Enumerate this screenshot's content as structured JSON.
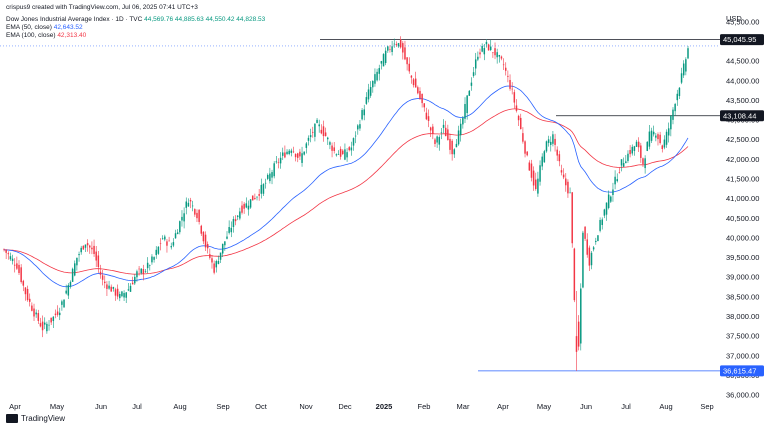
{
  "header": {
    "attribution": "crispus9 created with TradingView.com, Jul 06, 2025 07:41 UTC+3",
    "symbol_line": "Dow Jones Industrial Average Index · 1D · TVC",
    "ohlc": "44,569.76  44,885.63  44,550.42  44,828.53",
    "ema50_label": "EMA (50, close)",
    "ema50_value": "42,643.52",
    "ema100_label": "EMA (100, close)",
    "ema100_value": "42,313.40"
  },
  "currency": "USD",
  "footer": {
    "brand": "TradingView"
  },
  "colors": {
    "up": "#089981",
    "down": "#f23645",
    "ema50": "#2962ff",
    "ema100": "#f23645",
    "tag_blue": "#2962ff"
  },
  "chart_data": {
    "type": "candlestick",
    "title": "Dow Jones Industrial Average Index",
    "timeframe": "1D",
    "ylim": [
      35900,
      45750
    ],
    "y_ticks": [
      36000,
      36500,
      37000,
      37500,
      38000,
      38500,
      39000,
      39500,
      40000,
      40500,
      41000,
      41500,
      42000,
      42500,
      43000,
      43500,
      44000,
      44500,
      45000,
      45500
    ],
    "y_tick_labels": [
      "36,000.00",
      "36,500.00",
      "37,000.00",
      "37,500.00",
      "38,000.00",
      "38,500.00",
      "39,000.00",
      "39,500.00",
      "40,000.00",
      "40,500.00",
      "41,000.00",
      "41,500.00",
      "42,000.00",
      "42,500.00",
      "43,000.00",
      "43,500.00",
      "44,000.00",
      "44,500.00",
      "45,000.00",
      "45,500.00"
    ],
    "x_ticks": [
      {
        "label": "Apr",
        "bold": false
      },
      {
        "label": "May",
        "bold": false
      },
      {
        "label": "Jun",
        "bold": false
      },
      {
        "label": "Jul",
        "bold": false
      },
      {
        "label": "Aug",
        "bold": false
      },
      {
        "label": "Sep",
        "bold": false
      },
      {
        "label": "Oct",
        "bold": false
      },
      {
        "label": "Nov",
        "bold": false
      },
      {
        "label": "Dec",
        "bold": false
      },
      {
        "label": "2025",
        "bold": true
      },
      {
        "label": "Feb",
        "bold": false
      },
      {
        "label": "Mar",
        "bold": false
      },
      {
        "label": "Apr",
        "bold": false
      },
      {
        "label": "May",
        "bold": false
      },
      {
        "label": "Jun",
        "bold": false
      },
      {
        "label": "Jul",
        "bold": false
      },
      {
        "label": "Aug",
        "bold": false
      },
      {
        "label": "Sep",
        "bold": false
      }
    ],
    "anchors": [
      [
        0,
        39700
      ],
      [
        6,
        39300
      ],
      [
        10,
        38600
      ],
      [
        14,
        38100
      ],
      [
        18,
        37700
      ],
      [
        22,
        37900
      ],
      [
        26,
        38200
      ],
      [
        30,
        38800
      ],
      [
        34,
        39500
      ],
      [
        38,
        39900
      ],
      [
        42,
        39600
      ],
      [
        46,
        38900
      ],
      [
        50,
        38700
      ],
      [
        54,
        38500
      ],
      [
        58,
        38700
      ],
      [
        62,
        39100
      ],
      [
        66,
        39200
      ],
      [
        70,
        39500
      ],
      [
        74,
        40000
      ],
      [
        78,
        39800
      ],
      [
        82,
        40400
      ],
      [
        86,
        41000
      ],
      [
        90,
        40600
      ],
      [
        94,
        39800
      ],
      [
        98,
        39200
      ],
      [
        102,
        39800
      ],
      [
        106,
        40300
      ],
      [
        110,
        40700
      ],
      [
        114,
        40900
      ],
      [
        118,
        41100
      ],
      [
        122,
        41400
      ],
      [
        126,
        41800
      ],
      [
        130,
        42100
      ],
      [
        134,
        42300
      ],
      [
        138,
        42000
      ],
      [
        142,
        42500
      ],
      [
        146,
        42900
      ],
      [
        150,
        42600
      ],
      [
        154,
        42200
      ],
      [
        158,
        42100
      ],
      [
        162,
        42300
      ],
      [
        166,
        43000
      ],
      [
        170,
        43700
      ],
      [
        174,
        44200
      ],
      [
        178,
        44700
      ],
      [
        182,
        45000
      ],
      [
        185,
        44900
      ],
      [
        189,
        44200
      ],
      [
        193,
        43700
      ],
      [
        197,
        43100
      ],
      [
        201,
        42400
      ],
      [
        205,
        42800
      ],
      [
        209,
        42200
      ],
      [
        213,
        42800
      ],
      [
        217,
        43800
      ],
      [
        221,
        44700
      ],
      [
        225,
        44900
      ],
      [
        229,
        44700
      ],
      [
        233,
        44400
      ],
      [
        237,
        43700
      ],
      [
        240,
        43000
      ],
      [
        244,
        42000
      ],
      [
        248,
        41200
      ],
      [
        252,
        42300
      ],
      [
        256,
        42600
      ],
      [
        260,
        41600
      ],
      [
        264,
        41100
      ],
      [
        266,
        38500
      ],
      [
        268,
        37200
      ],
      [
        270,
        40200
      ],
      [
        273,
        39400
      ],
      [
        276,
        40000
      ],
      [
        280,
        40700
      ],
      [
        284,
        41300
      ],
      [
        288,
        41900
      ],
      [
        292,
        42200
      ],
      [
        295,
        42400
      ],
      [
        298,
        41900
      ],
      [
        301,
        42600
      ],
      [
        304,
        42700
      ],
      [
        307,
        42300
      ],
      [
        310,
        42800
      ],
      [
        313,
        43500
      ],
      [
        316,
        44100
      ],
      [
        319,
        44800
      ]
    ],
    "ema50_value": 42643.52,
    "ema100_value": 42313.4,
    "levels": [
      {
        "value": "45,045.95",
        "price": 45045.95,
        "style": "dark"
      },
      {
        "value": "43,108.44",
        "price": 43108.44,
        "style": "dark"
      },
      {
        "value": "36,615.47",
        "price": 36615.47,
        "style": "blue"
      }
    ]
  }
}
